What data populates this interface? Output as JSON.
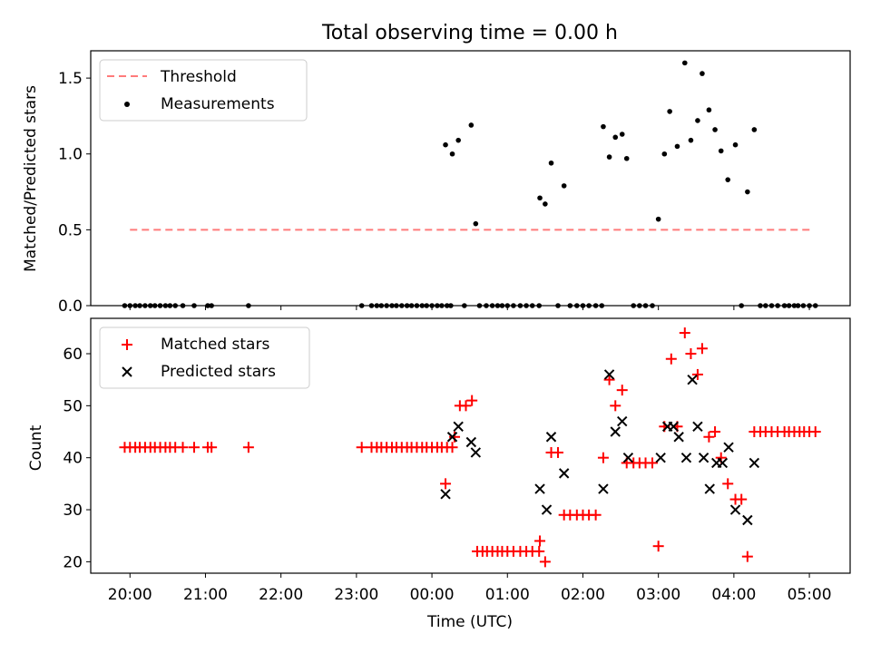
{
  "chart_data": [
    {
      "type": "scatter",
      "title": "Total observing time = 0.00 h",
      "xlabel": "",
      "ylabel": "Matched/Predicted stars",
      "ylim": [
        0.0,
        1.68
      ],
      "yticks": [
        0.0,
        0.5,
        1.0,
        1.5
      ],
      "ytick_labels": [
        "0.0",
        "0.5",
        "1.0",
        "1.5"
      ],
      "xticks": [
        0,
        1,
        2,
        3,
        4,
        5,
        6,
        7,
        8,
        9
      ],
      "xlim": [
        -0.52,
        9.54
      ],
      "x_unit": "hours since 20:00 UTC",
      "legend_position": "top-left",
      "threshold": {
        "name": "Threshold",
        "value": 0.5,
        "x_range": [
          0.0,
          9.05
        ],
        "color": "#ff7b7b",
        "style": "dashed"
      },
      "series": [
        {
          "name": "Measurements",
          "color": "#000000",
          "marker": "dot",
          "points": [
            [
              -0.07,
              0
            ],
            [
              0.0,
              0
            ],
            [
              0.07,
              0
            ],
            [
              0.13,
              0
            ],
            [
              0.2,
              0
            ],
            [
              0.27,
              0
            ],
            [
              0.33,
              0
            ],
            [
              0.4,
              0
            ],
            [
              0.47,
              0
            ],
            [
              0.53,
              0
            ],
            [
              0.6,
              0
            ],
            [
              0.7,
              0
            ],
            [
              0.85,
              0
            ],
            [
              1.03,
              0
            ],
            [
              1.08,
              0
            ],
            [
              1.57,
              0
            ],
            [
              3.07,
              0
            ],
            [
              3.2,
              0
            ],
            [
              3.27,
              0
            ],
            [
              3.33,
              0
            ],
            [
              3.4,
              0
            ],
            [
              3.47,
              0
            ],
            [
              3.53,
              0
            ],
            [
              3.6,
              0
            ],
            [
              3.67,
              0
            ],
            [
              3.73,
              0
            ],
            [
              3.8,
              0
            ],
            [
              3.87,
              0
            ],
            [
              3.93,
              0
            ],
            [
              4.0,
              0
            ],
            [
              4.07,
              0
            ],
            [
              4.13,
              0
            ],
            [
              4.2,
              0
            ],
            [
              4.25,
              0
            ],
            [
              4.18,
              1.06
            ],
            [
              4.27,
              1.0
            ],
            [
              4.35,
              1.09
            ],
            [
              4.43,
              0
            ],
            [
              4.52,
              1.19
            ],
            [
              4.58,
              0.54
            ],
            [
              4.63,
              0
            ],
            [
              4.72,
              0
            ],
            [
              4.8,
              0
            ],
            [
              4.87,
              0
            ],
            [
              4.93,
              0
            ],
            [
              5.0,
              0
            ],
            [
              5.08,
              0
            ],
            [
              5.17,
              0
            ],
            [
              5.25,
              0
            ],
            [
              5.33,
              0
            ],
            [
              5.42,
              0
            ],
            [
              5.43,
              0.71
            ],
            [
              5.5,
              0.67
            ],
            [
              5.58,
              0.94
            ],
            [
              5.67,
              0
            ],
            [
              5.75,
              0.79
            ],
            [
              5.83,
              0
            ],
            [
              5.92,
              0
            ],
            [
              6.0,
              0
            ],
            [
              6.08,
              0
            ],
            [
              6.17,
              0
            ],
            [
              6.25,
              0
            ],
            [
              6.27,
              1.18
            ],
            [
              6.35,
              0.98
            ],
            [
              6.43,
              1.11
            ],
            [
              6.52,
              1.13
            ],
            [
              6.58,
              0.97
            ],
            [
              6.67,
              0
            ],
            [
              6.75,
              0
            ],
            [
              6.83,
              0
            ],
            [
              6.92,
              0
            ],
            [
              7.0,
              0.57
            ],
            [
              7.08,
              1.0
            ],
            [
              7.15,
              1.28
            ],
            [
              7.25,
              1.05
            ],
            [
              7.35,
              1.6
            ],
            [
              7.43,
              1.09
            ],
            [
              7.52,
              1.22
            ],
            [
              7.58,
              1.53
            ],
            [
              7.67,
              1.29
            ],
            [
              7.75,
              1.16
            ],
            [
              7.83,
              1.02
            ],
            [
              7.92,
              0.83
            ],
            [
              8.02,
              1.06
            ],
            [
              8.1,
              0
            ],
            [
              8.18,
              0.75
            ],
            [
              8.27,
              1.16
            ],
            [
              8.35,
              0
            ],
            [
              8.42,
              0
            ],
            [
              8.5,
              0
            ],
            [
              8.58,
              0
            ],
            [
              8.67,
              0
            ],
            [
              8.73,
              0
            ],
            [
              8.8,
              0
            ],
            [
              8.85,
              0
            ],
            [
              8.92,
              0
            ],
            [
              9.0,
              0
            ],
            [
              9.08,
              0
            ]
          ]
        }
      ]
    },
    {
      "type": "scatter",
      "xlabel": "Time (UTC)",
      "ylabel": "Count",
      "ylim": [
        17.8,
        66.8
      ],
      "yticks": [
        20,
        30,
        40,
        50,
        60
      ],
      "ytick_labels": [
        "20",
        "30",
        "40",
        "50",
        "60"
      ],
      "xticks": [
        0,
        1,
        2,
        3,
        4,
        5,
        6,
        7,
        8,
        9
      ],
      "xtick_labels": [
        "20:00",
        "21:00",
        "22:00",
        "23:00",
        "00:00",
        "01:00",
        "02:00",
        "03:00",
        "04:00",
        "05:00"
      ],
      "xlim": [
        -0.52,
        9.54
      ],
      "x_unit": "hours since 20:00 UTC",
      "legend_position": "top-left",
      "series": [
        {
          "name": "Matched stars",
          "color": "#ff0000",
          "marker": "plus",
          "points": [
            [
              -0.07,
              42
            ],
            [
              0.0,
              42
            ],
            [
              0.07,
              42
            ],
            [
              0.13,
              42
            ],
            [
              0.2,
              42
            ],
            [
              0.27,
              42
            ],
            [
              0.33,
              42
            ],
            [
              0.4,
              42
            ],
            [
              0.47,
              42
            ],
            [
              0.53,
              42
            ],
            [
              0.6,
              42
            ],
            [
              0.7,
              42
            ],
            [
              0.85,
              42
            ],
            [
              1.03,
              42
            ],
            [
              1.08,
              42
            ],
            [
              1.57,
              42
            ],
            [
              3.07,
              42
            ],
            [
              3.2,
              42
            ],
            [
              3.27,
              42
            ],
            [
              3.33,
              42
            ],
            [
              3.4,
              42
            ],
            [
              3.47,
              42
            ],
            [
              3.53,
              42
            ],
            [
              3.6,
              42
            ],
            [
              3.67,
              42
            ],
            [
              3.73,
              42
            ],
            [
              3.8,
              42
            ],
            [
              3.87,
              42
            ],
            [
              3.93,
              42
            ],
            [
              4.0,
              42
            ],
            [
              4.07,
              42
            ],
            [
              4.13,
              42
            ],
            [
              4.2,
              42
            ],
            [
              4.27,
              42
            ],
            [
              4.18,
              35
            ],
            [
              4.3,
              44
            ],
            [
              4.37,
              50
            ],
            [
              4.45,
              50
            ],
            [
              4.53,
              51
            ],
            [
              4.6,
              22
            ],
            [
              4.67,
              22
            ],
            [
              4.73,
              22
            ],
            [
              4.8,
              22
            ],
            [
              4.87,
              22
            ],
            [
              4.93,
              22
            ],
            [
              5.0,
              22
            ],
            [
              5.08,
              22
            ],
            [
              5.17,
              22
            ],
            [
              5.25,
              22
            ],
            [
              5.33,
              22
            ],
            [
              5.42,
              22
            ],
            [
              5.43,
              24
            ],
            [
              5.5,
              20
            ],
            [
              5.58,
              41
            ],
            [
              5.67,
              41
            ],
            [
              5.75,
              29
            ],
            [
              5.83,
              29
            ],
            [
              5.92,
              29
            ],
            [
              6.0,
              29
            ],
            [
              6.08,
              29
            ],
            [
              6.17,
              29
            ],
            [
              6.27,
              40
            ],
            [
              6.35,
              55
            ],
            [
              6.43,
              50
            ],
            [
              6.52,
              53
            ],
            [
              6.58,
              39
            ],
            [
              6.67,
              39
            ],
            [
              6.75,
              39
            ],
            [
              6.83,
              39
            ],
            [
              6.92,
              39
            ],
            [
              7.0,
              23
            ],
            [
              7.08,
              46
            ],
            [
              7.17,
              59
            ],
            [
              7.25,
              46
            ],
            [
              7.35,
              64
            ],
            [
              7.43,
              60
            ],
            [
              7.52,
              56
            ],
            [
              7.58,
              61
            ],
            [
              7.67,
              44
            ],
            [
              7.75,
              45
            ],
            [
              7.83,
              40
            ],
            [
              7.92,
              35
            ],
            [
              8.02,
              32
            ],
            [
              8.1,
              32
            ],
            [
              8.18,
              21
            ],
            [
              8.27,
              45
            ],
            [
              8.35,
              45
            ],
            [
              8.42,
              45
            ],
            [
              8.5,
              45
            ],
            [
              8.58,
              45
            ],
            [
              8.67,
              45
            ],
            [
              8.73,
              45
            ],
            [
              8.8,
              45
            ],
            [
              8.87,
              45
            ],
            [
              8.93,
              45
            ],
            [
              9.0,
              45
            ],
            [
              9.08,
              45
            ]
          ]
        },
        {
          "name": "Predicted stars",
          "color": "#000000",
          "marker": "x",
          "points": [
            [
              4.18,
              33
            ],
            [
              4.27,
              44
            ],
            [
              4.35,
              46
            ],
            [
              4.52,
              43
            ],
            [
              4.58,
              41
            ],
            [
              5.43,
              34
            ],
            [
              5.52,
              30
            ],
            [
              5.58,
              44
            ],
            [
              5.75,
              37
            ],
            [
              6.27,
              34
            ],
            [
              6.35,
              56
            ],
            [
              6.43,
              45
            ],
            [
              6.52,
              47
            ],
            [
              6.6,
              40
            ],
            [
              7.03,
              40
            ],
            [
              7.12,
              46
            ],
            [
              7.2,
              46
            ],
            [
              7.27,
              44
            ],
            [
              7.37,
              40
            ],
            [
              7.45,
              55
            ],
            [
              7.52,
              46
            ],
            [
              7.6,
              40
            ],
            [
              7.68,
              34
            ],
            [
              7.77,
              39
            ],
            [
              7.85,
              39
            ],
            [
              7.93,
              42
            ],
            [
              8.02,
              30
            ],
            [
              8.18,
              28
            ],
            [
              8.27,
              39
            ]
          ]
        }
      ]
    }
  ]
}
